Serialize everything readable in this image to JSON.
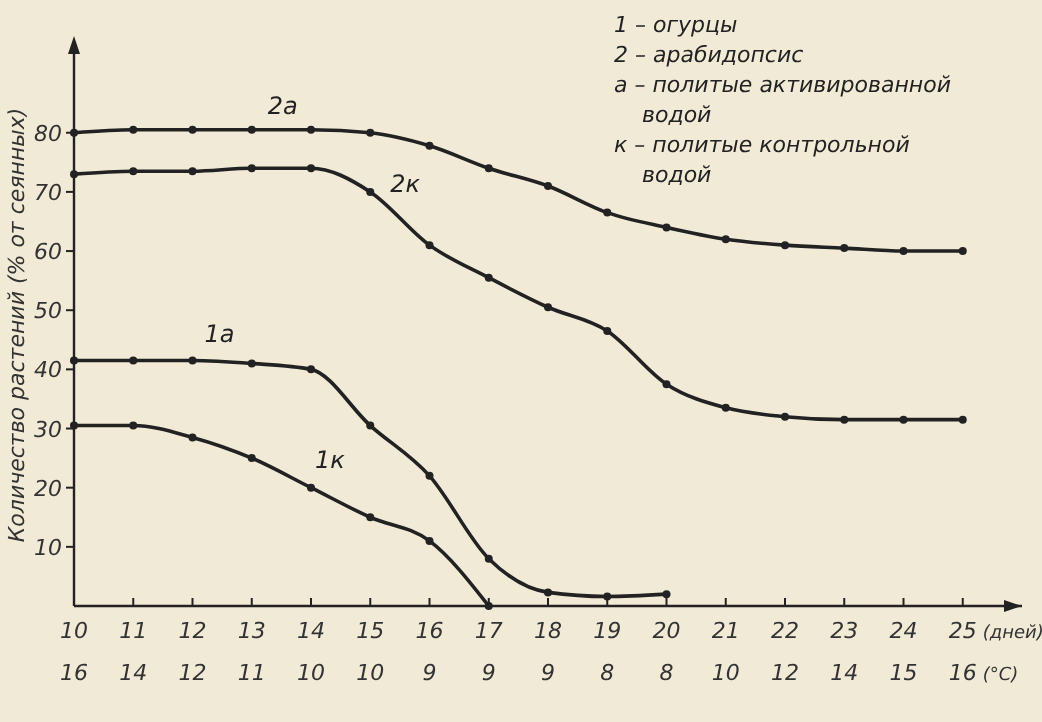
{
  "chart_data": {
    "type": "line",
    "ylabel": "Количество растений (% от сеянных)",
    "xlabel": "(дней)\n(°C)",
    "categories": [
      "10\n16",
      "11\n14",
      "12\n12",
      "13\n11",
      "14\n10",
      "15\n10",
      "16\n9",
      "17\n9",
      "18\n9",
      "19\n8",
      "20\n8",
      "21\n10",
      "22\n12",
      "23\n14",
      "24\n15",
      "25\n16"
    ],
    "ylim": [
      0,
      95
    ],
    "yticks": [
      10,
      20,
      30,
      40,
      50,
      60,
      70,
      80
    ],
    "grid": false,
    "marker": "circle",
    "line_style": "solid",
    "series": [
      {
        "name": "2а",
        "color": "#222222",
        "values": [
          80,
          80.5,
          80.5,
          80.5,
          80.5,
          80,
          77.8,
          74,
          71,
          66.5,
          64,
          62,
          61,
          60.5,
          60,
          60
        ]
      },
      {
        "name": "2к",
        "color": "#222222",
        "values": [
          73,
          73.5,
          73.5,
          74,
          74,
          70,
          61,
          55.5,
          50.5,
          46.5,
          37.5,
          33.5,
          32,
          31.5,
          31.5,
          31.5
        ]
      },
      {
        "name": "1а",
        "color": "#222222",
        "values": [
          41.5,
          41.5,
          41.5,
          41,
          40,
          30.5,
          22,
          8,
          2.3,
          1.6,
          2,
          null,
          null,
          null,
          null,
          null
        ]
      },
      {
        "name": "1к",
        "color": "#222222",
        "values": [
          30.5,
          30.5,
          28.5,
          25,
          20,
          15,
          11,
          0,
          null,
          null,
          null,
          null,
          null,
          null,
          null,
          null
        ]
      }
    ],
    "annotations": [
      "1 – огурцы",
      "2 – арабидопсис",
      "а – политые активированной водой",
      "к – политые контрольной водой"
    ]
  }
}
